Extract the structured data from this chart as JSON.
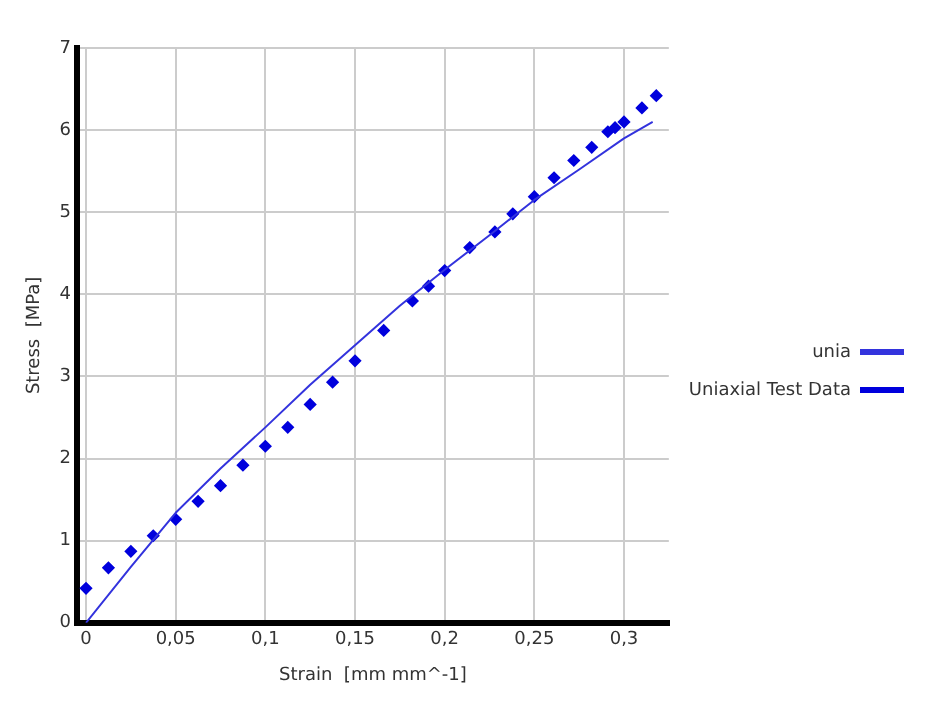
{
  "chart_data": {
    "type": "scatter",
    "xlabel": "Strain  [mm mm^-1]",
    "ylabel": "Stress  [MPa]",
    "xlim": [
      -0.005,
      0.325
    ],
    "ylim": [
      0,
      7
    ],
    "xticks": [
      0,
      {
        "value": 0.05,
        "label": "0,05"
      },
      {
        "value": 0.1,
        "label": "0,1"
      },
      {
        "value": 0.15,
        "label": "0,15"
      },
      {
        "value": 0.2,
        "label": "0,2"
      },
      {
        "value": 0.25,
        "label": "0,25"
      },
      {
        "value": 0.3,
        "label": "0,3"
      }
    ],
    "yticks": [
      0,
      1,
      2,
      3,
      4,
      5,
      6,
      7
    ],
    "grid": true,
    "legend": "right",
    "series": [
      {
        "name": "unia",
        "type": "line",
        "color": "#3333dd",
        "marker": "none",
        "x": [
          0,
          0.025,
          0.05,
          0.075,
          0.1,
          0.125,
          0.15,
          0.175,
          0.2,
          0.225,
          0.25,
          0.275,
          0.3,
          0.316
        ],
        "values": [
          0,
          0.68,
          1.34,
          1.88,
          2.38,
          2.9,
          3.38,
          3.86,
          4.3,
          4.72,
          5.15,
          5.52,
          5.9,
          6.1
        ]
      },
      {
        "name": "Uniaxial Test Data",
        "type": "scatter",
        "color": "#0000dd",
        "marker": "diamond",
        "x": [
          0,
          0.0125,
          0.025,
          0.0375,
          0.05,
          0.0625,
          0.075,
          0.0875,
          0.1,
          0.1125,
          0.125,
          0.1375,
          0.15,
          0.166,
          0.182,
          0.191,
          0.2,
          0.214,
          0.228,
          0.238,
          0.25,
          0.261,
          0.272,
          0.282,
          0.291,
          0.295,
          0.3,
          0.31,
          0.318
        ],
        "values": [
          0.42,
          0.67,
          0.87,
          1.06,
          1.26,
          1.48,
          1.67,
          1.92,
          2.15,
          2.38,
          2.66,
          2.93,
          3.19,
          3.56,
          3.92,
          4.1,
          4.29,
          4.57,
          4.76,
          4.98,
          5.19,
          5.42,
          5.63,
          5.79,
          5.98,
          6.03,
          6.1,
          6.27,
          6.42
        ]
      }
    ]
  }
}
